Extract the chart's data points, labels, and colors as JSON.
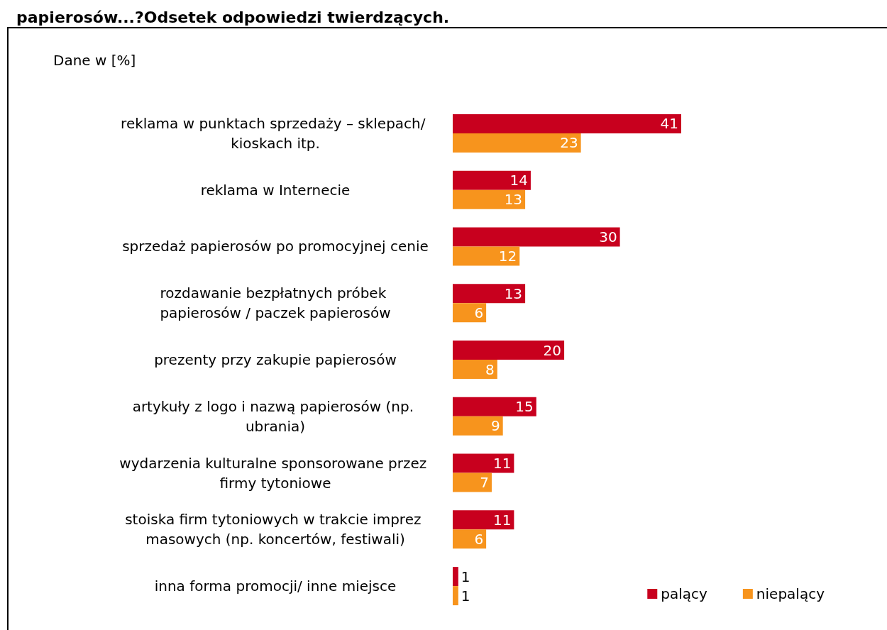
{
  "chart_data": {
    "type": "bar",
    "orientation": "horizontal",
    "title": "papierosów...?Odsetek odpowiedzi twierdzących.",
    "subtitle": "Dane w [%]",
    "categories": [
      "reklama w punktach sprzedaży – sklepach/ kioskach itp.",
      "reklama w Internecie",
      "sprzedaż papierosów po promocyjnej cenie",
      "rozdawanie bezpłatnych próbek papierosów / paczek papierosów",
      "prezenty przy zakupie papierosów",
      "artykuły z logo i nazwą papierosów (np. ubrania)",
      "wydarzenia kulturalne sponsorowane przez firmy tytoniowe",
      "stoiska firm tytoniowych w trakcie imprez masowych (np. koncertów, festiwali)",
      "inna forma promocji/ inne miejsce"
    ],
    "series": [
      {
        "name": "palący",
        "color": "#c8001e",
        "values": [
          41,
          14,
          30,
          13,
          20,
          15,
          11,
          11,
          1
        ]
      },
      {
        "name": "niepalący",
        "color": "#f7941d",
        "values": [
          23,
          13,
          12,
          6,
          8,
          9,
          7,
          6,
          1
        ]
      }
    ],
    "data_labels": true,
    "legend": "bottom right"
  }
}
